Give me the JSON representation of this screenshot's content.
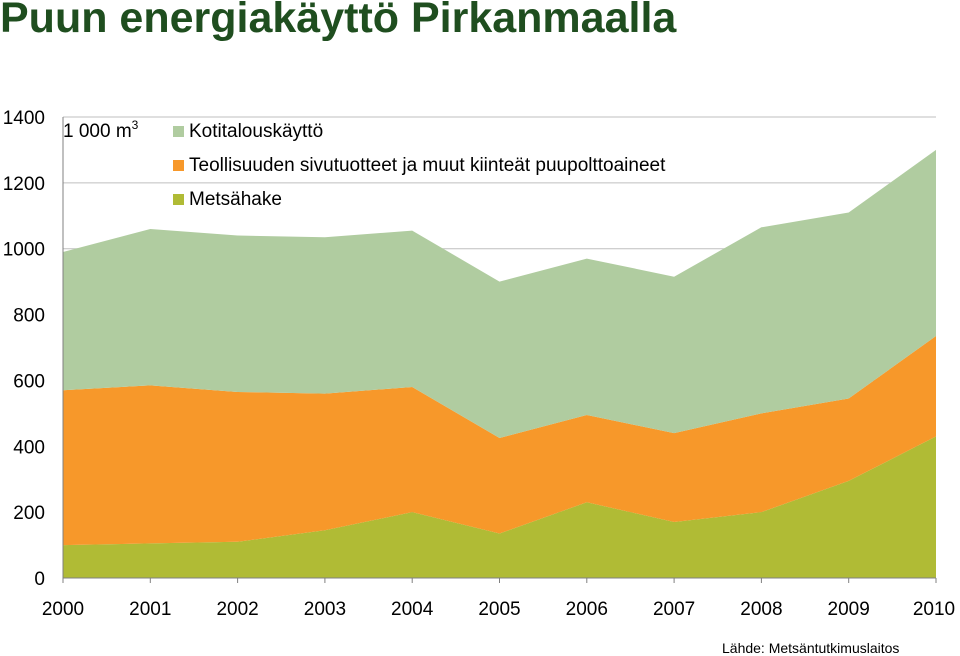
{
  "title": "Puun energiakäyttö Pirkanmaalla",
  "source": "Lähde: Metsäntutkimuslaitos",
  "chart_data": {
    "type": "area",
    "stacked": true,
    "unit_label": "1 000 m",
    "unit_superscript": "3",
    "x": [
      "2000",
      "2001",
      "2002",
      "2003",
      "2004",
      "2005",
      "2006",
      "2007",
      "2008",
      "2009",
      "2010"
    ],
    "ylim": [
      0,
      1400
    ],
    "yticks": [
      "0",
      "200",
      "400",
      "600",
      "800",
      "1000",
      "1200",
      "1400"
    ],
    "grid": true,
    "legend_position": "top-left",
    "series": [
      {
        "name": "Metsähake",
        "color": "#b0bb35",
        "values": [
          100,
          105,
          110,
          145,
          200,
          135,
          230,
          170,
          200,
          295,
          430
        ]
      },
      {
        "name": "Teollisuuden sivutuotteet ja muut kiinteät puupolttoaineet",
        "color": "#f7982a",
        "values": [
          470,
          480,
          455,
          415,
          380,
          290,
          265,
          270,
          300,
          250,
          305
        ]
      },
      {
        "name": "Kotitalouskäyttö",
        "color": "#b0cca0",
        "values": [
          420,
          475,
          475,
          475,
          475,
          475,
          475,
          475,
          565,
          565,
          565
        ]
      }
    ]
  }
}
